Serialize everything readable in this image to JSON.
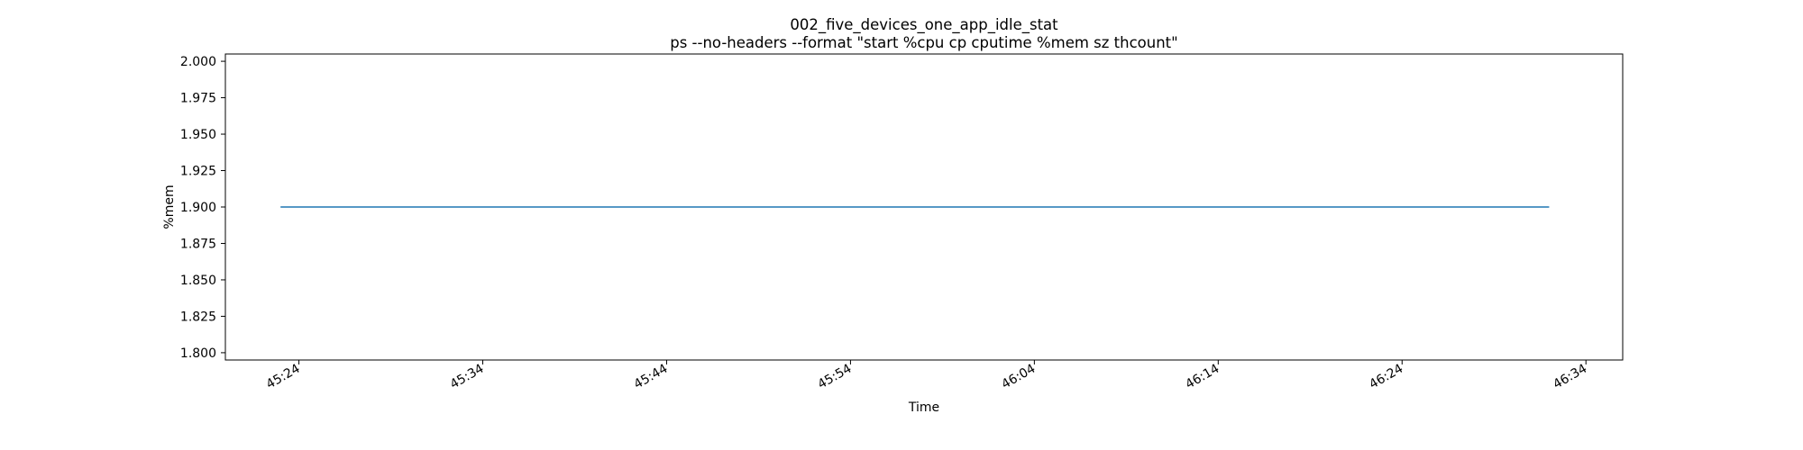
{
  "chart_data": {
    "type": "line",
    "title": "002_five_devices_one_app_idle_stat",
    "subtitle": "ps --no-headers --format \"start %cpu cp cputime %mem sz thcount\"",
    "xlabel": "Time",
    "ylabel": "%mem",
    "x_ticks": [
      "45:24",
      "45:34",
      "45:44",
      "45:54",
      "46:04",
      "46:14",
      "46:24",
      "46:34"
    ],
    "y_ticks": [
      "1.800",
      "1.825",
      "1.850",
      "1.875",
      "1.900",
      "1.925",
      "1.950",
      "1.975",
      "2.000"
    ],
    "xlim": [
      "45:20",
      "46:36"
    ],
    "ylim": [
      1.795,
      2.005
    ],
    "grid": false,
    "series": [
      {
        "color": "#1f77b4",
        "points": [
          {
            "x": "45:23",
            "y": 1.9
          },
          {
            "x": "46:32",
            "y": 1.9
          }
        ]
      }
    ]
  }
}
